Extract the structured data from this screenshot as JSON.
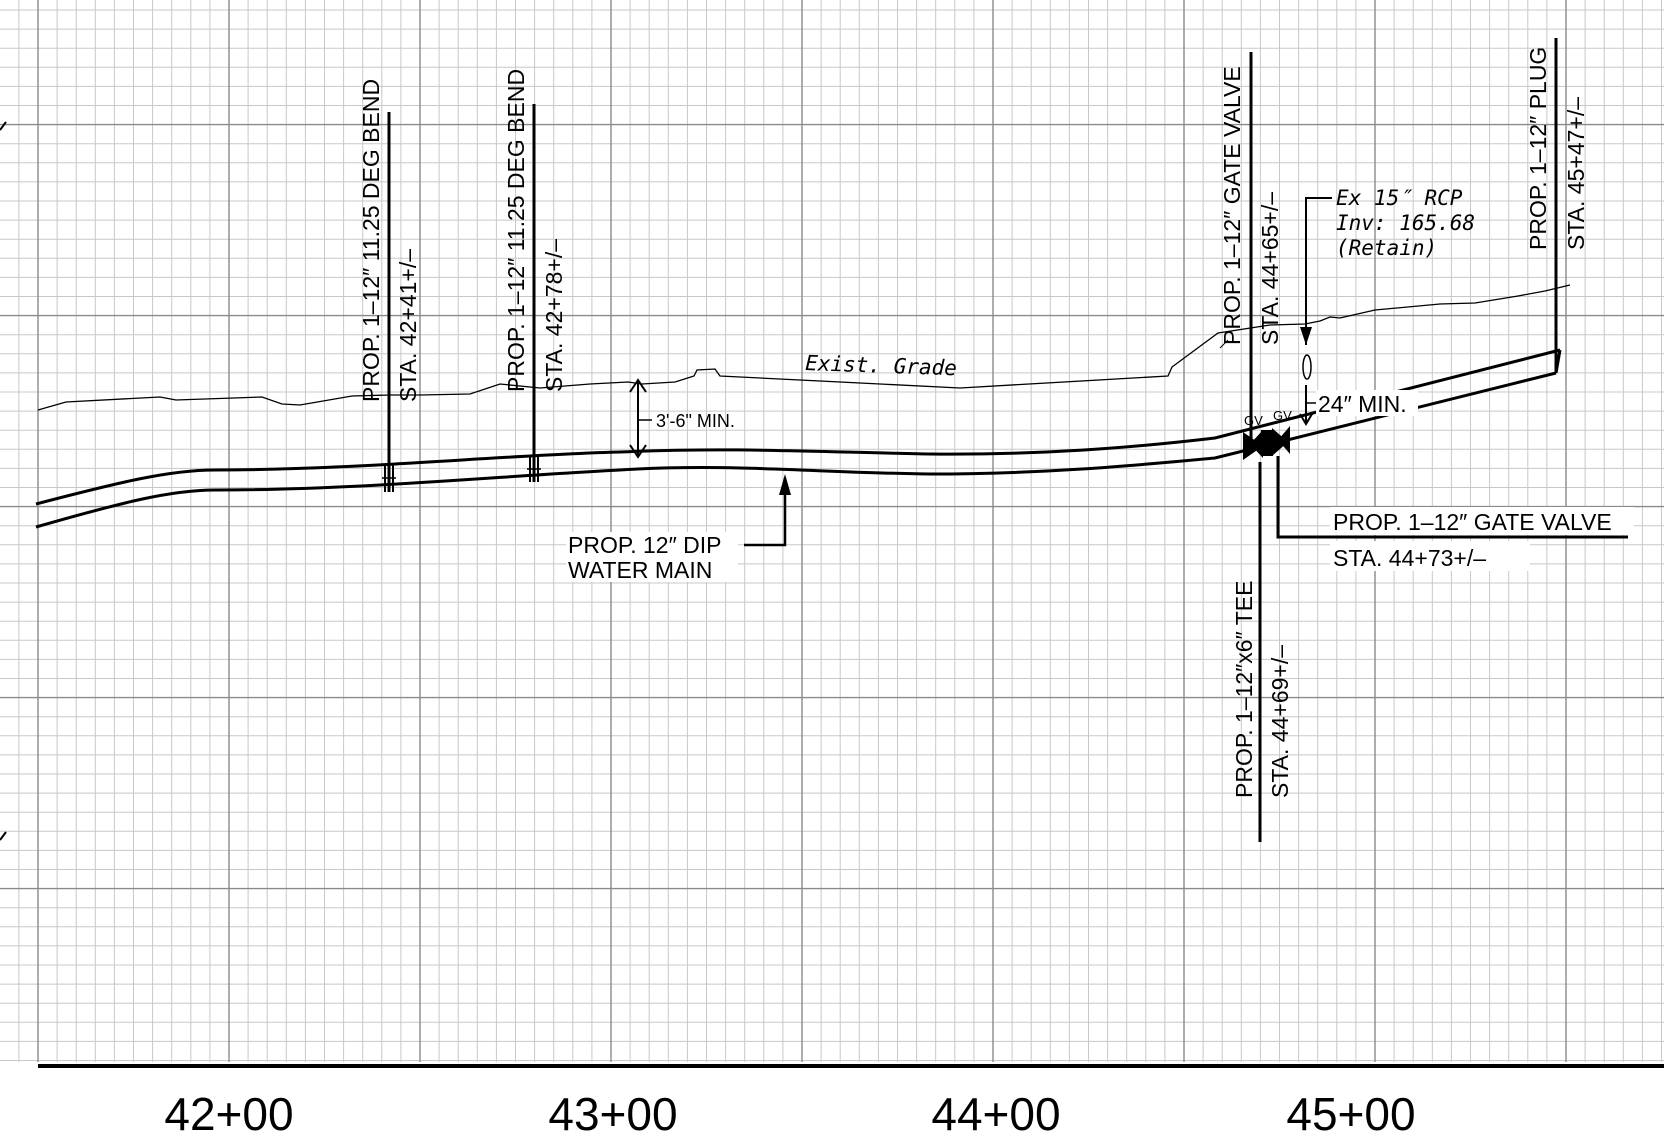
{
  "stations": [
    "42+00",
    "43+00",
    "44+00",
    "45+00"
  ],
  "callouts": {
    "bend1": {
      "desc": "PROP. 1–12″ 11.25 DEG BEND",
      "sta": "STA. 42+41+/–"
    },
    "bend2": {
      "desc": "PROP. 1–12″ 11.25 DEG BEND",
      "sta": "STA. 42+78+/–"
    },
    "valve1": {
      "desc": "PROP. 1–12″ GATE VALVE",
      "sta": "STA. 44+65+/–"
    },
    "plug": {
      "desc": "PROP. 1–12″ PLUG",
      "sta": "STA. 45+47+/–"
    },
    "tee": {
      "desc": "PROP. 1–12″x6″ TEE",
      "sta": "STA. 44+69+/–"
    },
    "valve2": {
      "desc": "PROP. 1–12″ GATE VALVE",
      "sta": "STA. 44+73+/–"
    },
    "water_main": {
      "line1": "PROP. 12″ DIP",
      "line2": "WATER MAIN"
    },
    "rcp": {
      "line1": "Ex 15″ RCP",
      "line2": "Inv: 165.68",
      "line3": "(Retain)"
    },
    "exist_grade": "Exist. Grade",
    "cover_min": "3'-6\" MIN.",
    "sep_min": "24″ MIN.",
    "gv_label": "GV"
  }
}
